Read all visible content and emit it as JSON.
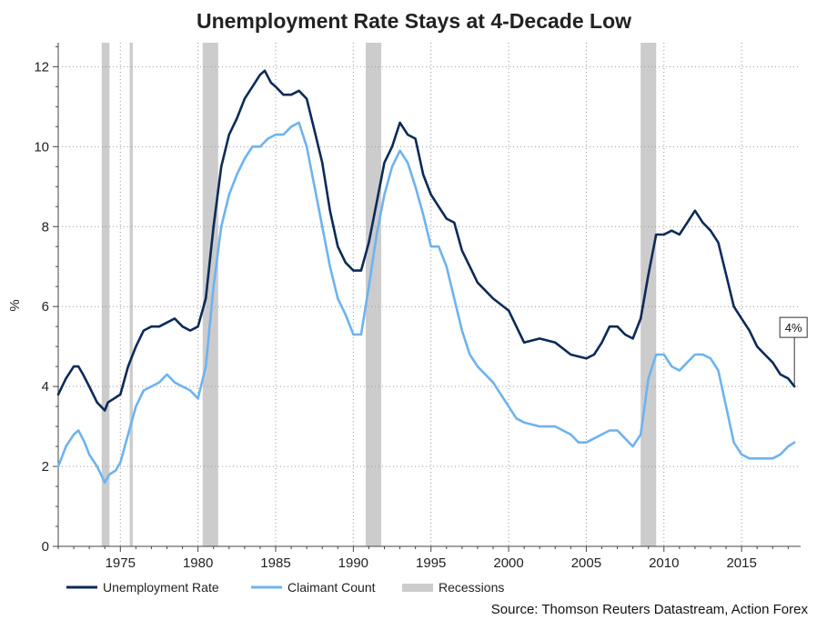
{
  "chart_data": {
    "type": "line",
    "title": "Unemployment Rate Stays at 4-Decade Low",
    "xlabel": "",
    "ylabel": "%",
    "xlim": [
      1971,
      2018.8
    ],
    "ylim": [
      0,
      12.6
    ],
    "xticks": [
      1975,
      1980,
      1985,
      1990,
      1995,
      2000,
      2005,
      2010,
      2015
    ],
    "yticks": [
      0,
      2,
      4,
      6,
      8,
      10,
      12
    ],
    "grid": true,
    "legend_position": "bottom-left",
    "colors": {
      "unemployment": "#0b2a57",
      "claimant": "#6db3ef",
      "recession": "#cccccc",
      "axis": "#444444",
      "grid": "#999999"
    },
    "recessions": [
      [
        1973.8,
        1974.3
      ],
      [
        1975.6,
        1975.8
      ],
      [
        1980.3,
        1981.3
      ],
      [
        1990.8,
        1991.8
      ],
      [
        2008.5,
        2009.5
      ]
    ],
    "annotation": {
      "label": "4%",
      "x": 2018.4,
      "y": 4.0
    },
    "series": [
      {
        "name": "Unemployment Rate",
        "x": [
          1971.0,
          1971.5,
          1972.0,
          1972.3,
          1972.6,
          1973.0,
          1973.5,
          1974.0,
          1974.2,
          1974.6,
          1975.0,
          1975.5,
          1976.0,
          1976.5,
          1977.0,
          1977.5,
          1978.0,
          1978.5,
          1979.0,
          1979.5,
          1980.0,
          1980.5,
          1981.0,
          1981.5,
          1982.0,
          1982.5,
          1983.0,
          1983.5,
          1984.0,
          1984.3,
          1984.7,
          1985.0,
          1985.5,
          1986.0,
          1986.5,
          1987.0,
          1987.5,
          1988.0,
          1988.5,
          1989.0,
          1989.5,
          1990.0,
          1990.5,
          1991.0,
          1991.5,
          1992.0,
          1992.5,
          1993.0,
          1993.5,
          1994.0,
          1994.5,
          1995.0,
          1995.5,
          1996.0,
          1996.5,
          1997.0,
          1997.5,
          1998.0,
          1999.0,
          2000.0,
          2000.5,
          2001.0,
          2002.0,
          2003.0,
          2004.0,
          2005.0,
          2005.5,
          2006.0,
          2006.5,
          2007.0,
          2007.5,
          2008.0,
          2008.5,
          2009.0,
          2009.5,
          2010.0,
          2010.5,
          2011.0,
          2011.5,
          2012.0,
          2012.5,
          2013.0,
          2013.5,
          2014.0,
          2014.5,
          2015.0,
          2015.5,
          2016.0,
          2016.5,
          2017.0,
          2017.5,
          2018.0,
          2018.4
        ],
        "values": [
          3.8,
          4.2,
          4.5,
          4.5,
          4.3,
          4.0,
          3.6,
          3.4,
          3.6,
          3.7,
          3.8,
          4.5,
          5.0,
          5.4,
          5.5,
          5.5,
          5.6,
          5.7,
          5.5,
          5.4,
          5.5,
          6.2,
          8.0,
          9.5,
          10.3,
          10.7,
          11.2,
          11.5,
          11.8,
          11.9,
          11.6,
          11.5,
          11.3,
          11.3,
          11.4,
          11.2,
          10.4,
          9.6,
          8.4,
          7.5,
          7.1,
          6.9,
          6.9,
          7.6,
          8.6,
          9.6,
          10.0,
          10.6,
          10.3,
          10.2,
          9.3,
          8.8,
          8.5,
          8.2,
          8.1,
          7.4,
          7.0,
          6.6,
          6.2,
          5.9,
          5.5,
          5.1,
          5.2,
          5.1,
          4.8,
          4.7,
          4.8,
          5.1,
          5.5,
          5.5,
          5.3,
          5.2,
          5.7,
          6.8,
          7.8,
          7.8,
          7.9,
          7.8,
          8.1,
          8.4,
          8.1,
          7.9,
          7.6,
          6.8,
          6.0,
          5.7,
          5.4,
          5.0,
          4.8,
          4.6,
          4.3,
          4.2,
          4.0
        ]
      },
      {
        "name": "Claimant Count",
        "x": [
          1971.0,
          1971.5,
          1972.0,
          1972.3,
          1972.7,
          1973.0,
          1973.5,
          1974.0,
          1974.3,
          1974.7,
          1975.0,
          1975.5,
          1976.0,
          1976.5,
          1977.0,
          1977.5,
          1978.0,
          1978.5,
          1979.0,
          1979.5,
          1980.0,
          1980.5,
          1981.0,
          1981.5,
          1982.0,
          1982.5,
          1983.0,
          1983.5,
          1984.0,
          1984.5,
          1985.0,
          1985.5,
          1986.0,
          1986.5,
          1987.0,
          1987.5,
          1988.0,
          1988.5,
          1989.0,
          1989.5,
          1990.0,
          1990.5,
          1991.0,
          1991.5,
          1992.0,
          1992.5,
          1993.0,
          1993.5,
          1994.0,
          1994.5,
          1995.0,
          1995.5,
          1996.0,
          1996.5,
          1997.0,
          1997.5,
          1998.0,
          1999.0,
          2000.0,
          2000.5,
          2001.0,
          2002.0,
          2003.0,
          2004.0,
          2004.5,
          2005.0,
          2005.5,
          2006.0,
          2006.5,
          2007.0,
          2007.5,
          2008.0,
          2008.5,
          2009.0,
          2009.5,
          2010.0,
          2010.5,
          2011.0,
          2011.5,
          2012.0,
          2012.5,
          2013.0,
          2013.5,
          2014.0,
          2014.5,
          2015.0,
          2015.5,
          2016.0,
          2016.5,
          2017.0,
          2017.5,
          2018.0,
          2018.4
        ],
        "values": [
          2.0,
          2.5,
          2.8,
          2.9,
          2.6,
          2.3,
          2.0,
          1.6,
          1.8,
          1.9,
          2.1,
          2.8,
          3.5,
          3.9,
          4.0,
          4.1,
          4.3,
          4.1,
          4.0,
          3.9,
          3.7,
          4.5,
          6.5,
          8.0,
          8.8,
          9.3,
          9.7,
          10.0,
          10.0,
          10.2,
          10.3,
          10.3,
          10.5,
          10.6,
          10.0,
          9.0,
          8.0,
          7.0,
          6.2,
          5.8,
          5.3,
          5.3,
          6.5,
          7.8,
          8.8,
          9.5,
          9.9,
          9.6,
          9.0,
          8.3,
          7.5,
          7.5,
          7.0,
          6.2,
          5.4,
          4.8,
          4.5,
          4.1,
          3.5,
          3.2,
          3.1,
          3.0,
          3.0,
          2.8,
          2.6,
          2.6,
          2.7,
          2.8,
          2.9,
          2.9,
          2.7,
          2.5,
          2.8,
          4.2,
          4.8,
          4.8,
          4.5,
          4.4,
          4.6,
          4.8,
          4.8,
          4.7,
          4.4,
          3.5,
          2.6,
          2.3,
          2.2,
          2.2,
          2.2,
          2.2,
          2.3,
          2.5,
          2.6
        ]
      }
    ],
    "legend": [
      {
        "key": "unemployment",
        "label": "Unemployment Rate"
      },
      {
        "key": "claimant",
        "label": "Claimant Count"
      },
      {
        "key": "recession",
        "label": "Recessions"
      }
    ],
    "source": "Source: Thomson Reuters Datastream, Action Forex"
  }
}
